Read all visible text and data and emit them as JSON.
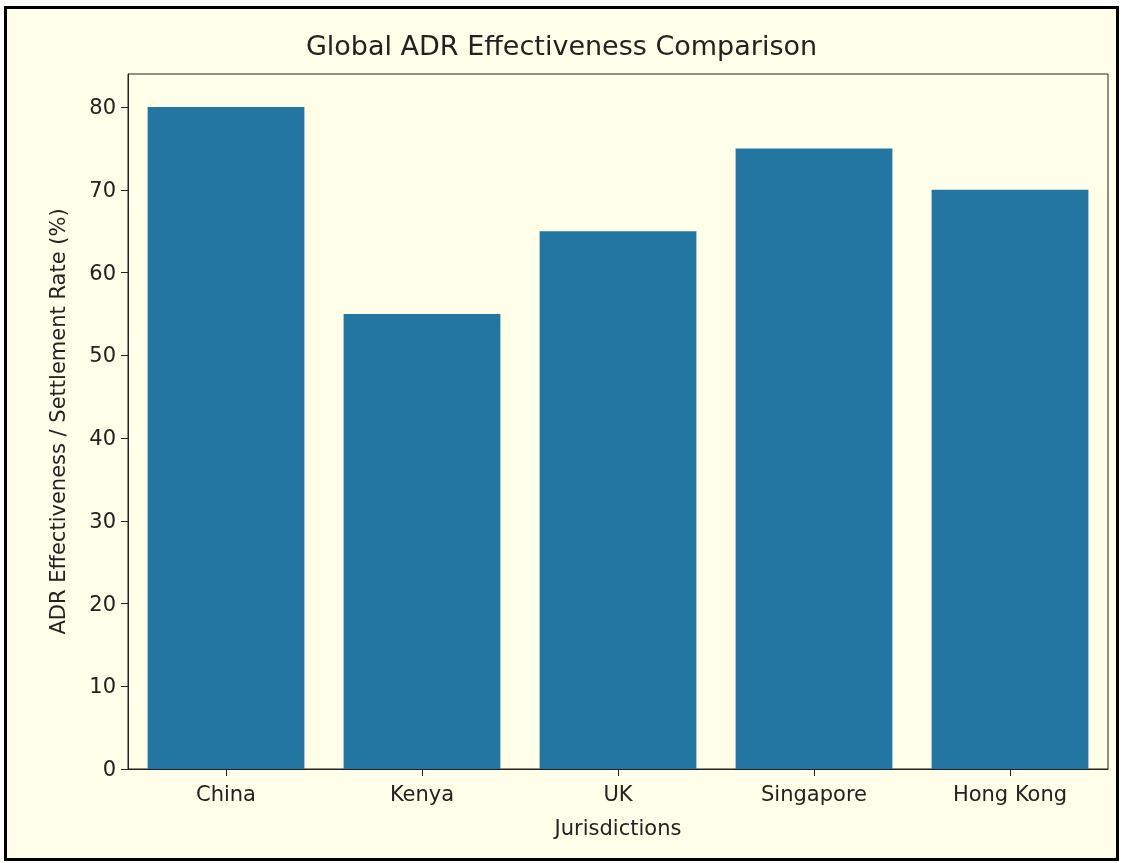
{
  "chart_data": {
    "type": "bar",
    "title": "Global ADR Effectiveness Comparison",
    "xlabel": "Jurisdictions",
    "ylabel": "ADR Effectiveness / Settlement Rate (%)",
    "categories": [
      "China",
      "Kenya",
      "UK",
      "Singapore",
      "Hong Kong"
    ],
    "values": [
      80,
      55,
      65,
      75,
      70
    ],
    "color": "#2376a2",
    "ylim": [
      0,
      84
    ],
    "yticks": [
      0,
      10,
      20,
      30,
      40,
      50,
      60,
      70,
      80
    ],
    "grid": false
  }
}
